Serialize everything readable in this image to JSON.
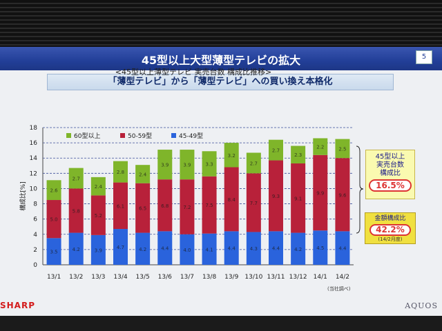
{
  "slide": {
    "title": "45型以上大型薄型テレビの拡大",
    "page_number": "5",
    "subtitle": "「薄型テレビ」から「薄型テレビ」への買い換え本格化",
    "source_note": "(当社調べ)",
    "logo_left": "SHARP",
    "logo_right": "AQUOS"
  },
  "callouts": {
    "share_line1": "45型以上",
    "share_line2": "実売台数",
    "share_line3": "構成比",
    "share_value": "16.5%",
    "amount_label": "金額構成比",
    "amount_value": "42.2%",
    "amount_note": "(14/2月度)"
  },
  "chart_data": {
    "type": "bar",
    "stacked": true,
    "title": "<45型以上薄型テレビ 実売台数 構成比推移>",
    "ylabel": "構成比[%]",
    "xlabel": "",
    "ylim": [
      0,
      18
    ],
    "yticks": [
      0,
      2,
      4,
      6,
      8,
      10,
      12,
      14,
      16,
      18
    ],
    "grid": true,
    "legend": "top-left",
    "categories": [
      "13/1",
      "13/2",
      "13/3",
      "13/4",
      "13/5",
      "13/6",
      "13/7",
      "13/8",
      "13/9",
      "13/10",
      "13/11",
      "13/12",
      "14/1",
      "14/2"
    ],
    "series": [
      {
        "name": "45-49型",
        "color": "#2a63dc",
        "values": [
          3.5,
          4.2,
          3.9,
          4.7,
          4.2,
          4.4,
          4.0,
          4.1,
          4.4,
          4.3,
          4.4,
          4.2,
          4.5,
          4.4
        ],
        "labels": [
          "3.5",
          "4.2",
          "3.9",
          "4.7",
          "4.2",
          "4.4",
          "4.0",
          "4.1",
          "4.4",
          "4.3",
          "4.4",
          "4.2",
          "4.5",
          "4.4"
        ]
      },
      {
        "name": "50-59型",
        "color": "#b8213a",
        "values": [
          5.0,
          5.8,
          5.2,
          6.1,
          6.5,
          6.8,
          7.2,
          7.5,
          8.4,
          7.7,
          9.3,
          9.1,
          9.9,
          9.6
        ],
        "labels": [
          "5.0",
          "5.8",
          "5.2",
          "6.1",
          "6.5",
          "6.8",
          "7.2",
          "7.5",
          "8.4",
          "7.7",
          "9.3",
          "9.1",
          "9.9",
          "9.6"
        ]
      },
      {
        "name": "60型以上",
        "color": "#7fb52a",
        "values": [
          2.6,
          2.7,
          2.4,
          2.8,
          2.4,
          3.9,
          3.9,
          3.3,
          3.2,
          2.7,
          2.7,
          2.3,
          2.2,
          2.5
        ],
        "labels": [
          "2.6",
          "2.7",
          "2.4",
          "2.8",
          "2.4",
          "3.9",
          "3.9",
          "3.3",
          "3.2",
          "2.7",
          "2.7",
          "2.3",
          "2.2",
          "2.5"
        ]
      }
    ]
  }
}
